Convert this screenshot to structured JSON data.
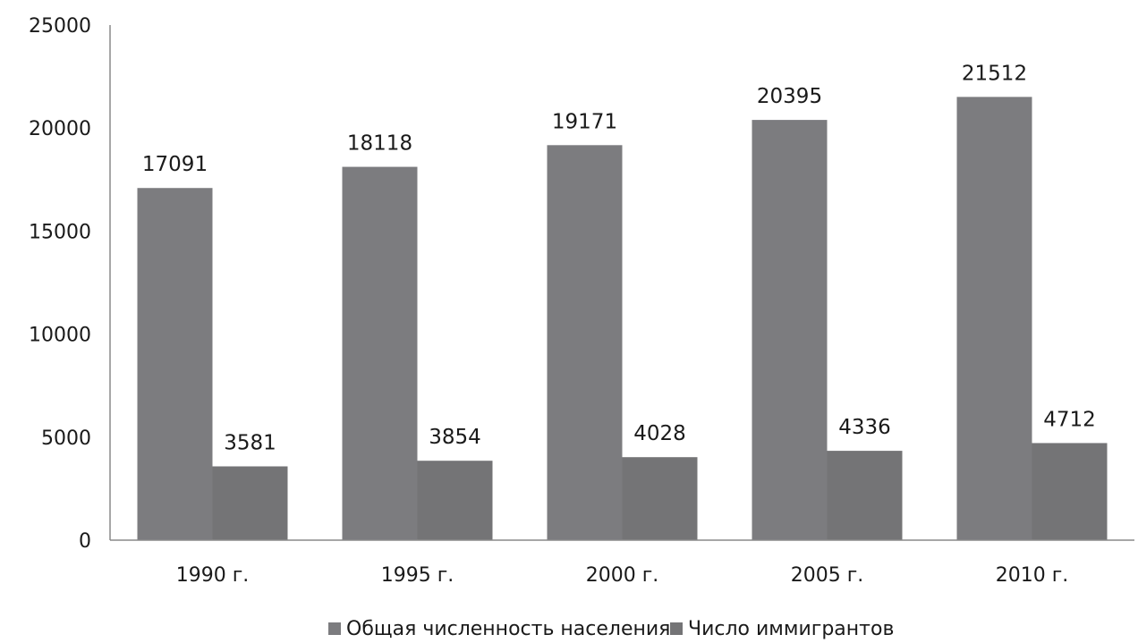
{
  "chart_data": {
    "type": "bar",
    "categories": [
      "1990 г.",
      "1995 г.",
      "2000 г.",
      "2005 г.",
      "2010 г."
    ],
    "series": [
      {
        "name": "Общая численность населения",
        "values": [
          17091,
          18118,
          19171,
          20395,
          21512
        ],
        "color": "#7c7c7f"
      },
      {
        "name": "Число иммигрантов",
        "values": [
          3581,
          3854,
          4028,
          4336,
          4712
        ],
        "color": "#747476"
      }
    ],
    "ylim": [
      0,
      25000
    ],
    "yticks": [
      "0",
      "5000",
      "10000",
      "15000",
      "20000",
      "25000"
    ],
    "data_labels": true,
    "grid": false,
    "legend_position": "bottom"
  }
}
